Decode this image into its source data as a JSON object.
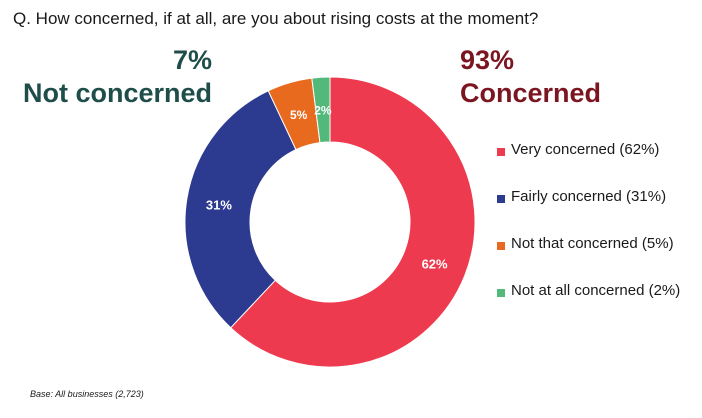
{
  "question": "Q. How concerned, if at all, are you about rising costs at the moment?",
  "summary_left": {
    "percent": "7%",
    "label": "Not concerned",
    "color": "#1f4e4a"
  },
  "summary_right": {
    "percent": "93%",
    "label": "Concerned",
    "color": "#7b1520"
  },
  "chart_data": {
    "type": "pie",
    "variant": "donut",
    "categories": [
      "Very concerned",
      "Fairly concerned",
      "Not that concerned",
      "Not at all concerned"
    ],
    "values": [
      62,
      31,
      5,
      2
    ],
    "data_labels": [
      "62%",
      "31%",
      "5%",
      "2%"
    ],
    "colors": [
      "#ee3a4e",
      "#2c3a8f",
      "#e86a1f",
      "#52b97a"
    ],
    "legend": {
      "placement": "right",
      "entries": [
        "Very concerned (62%)",
        "Fairly concerned (31%)",
        "Not that concerned (5%)",
        "Not at all concerned (2%)"
      ]
    },
    "start": "top",
    "direction": "clockwise"
  },
  "base_note": "Base: All businesses (2,723)"
}
